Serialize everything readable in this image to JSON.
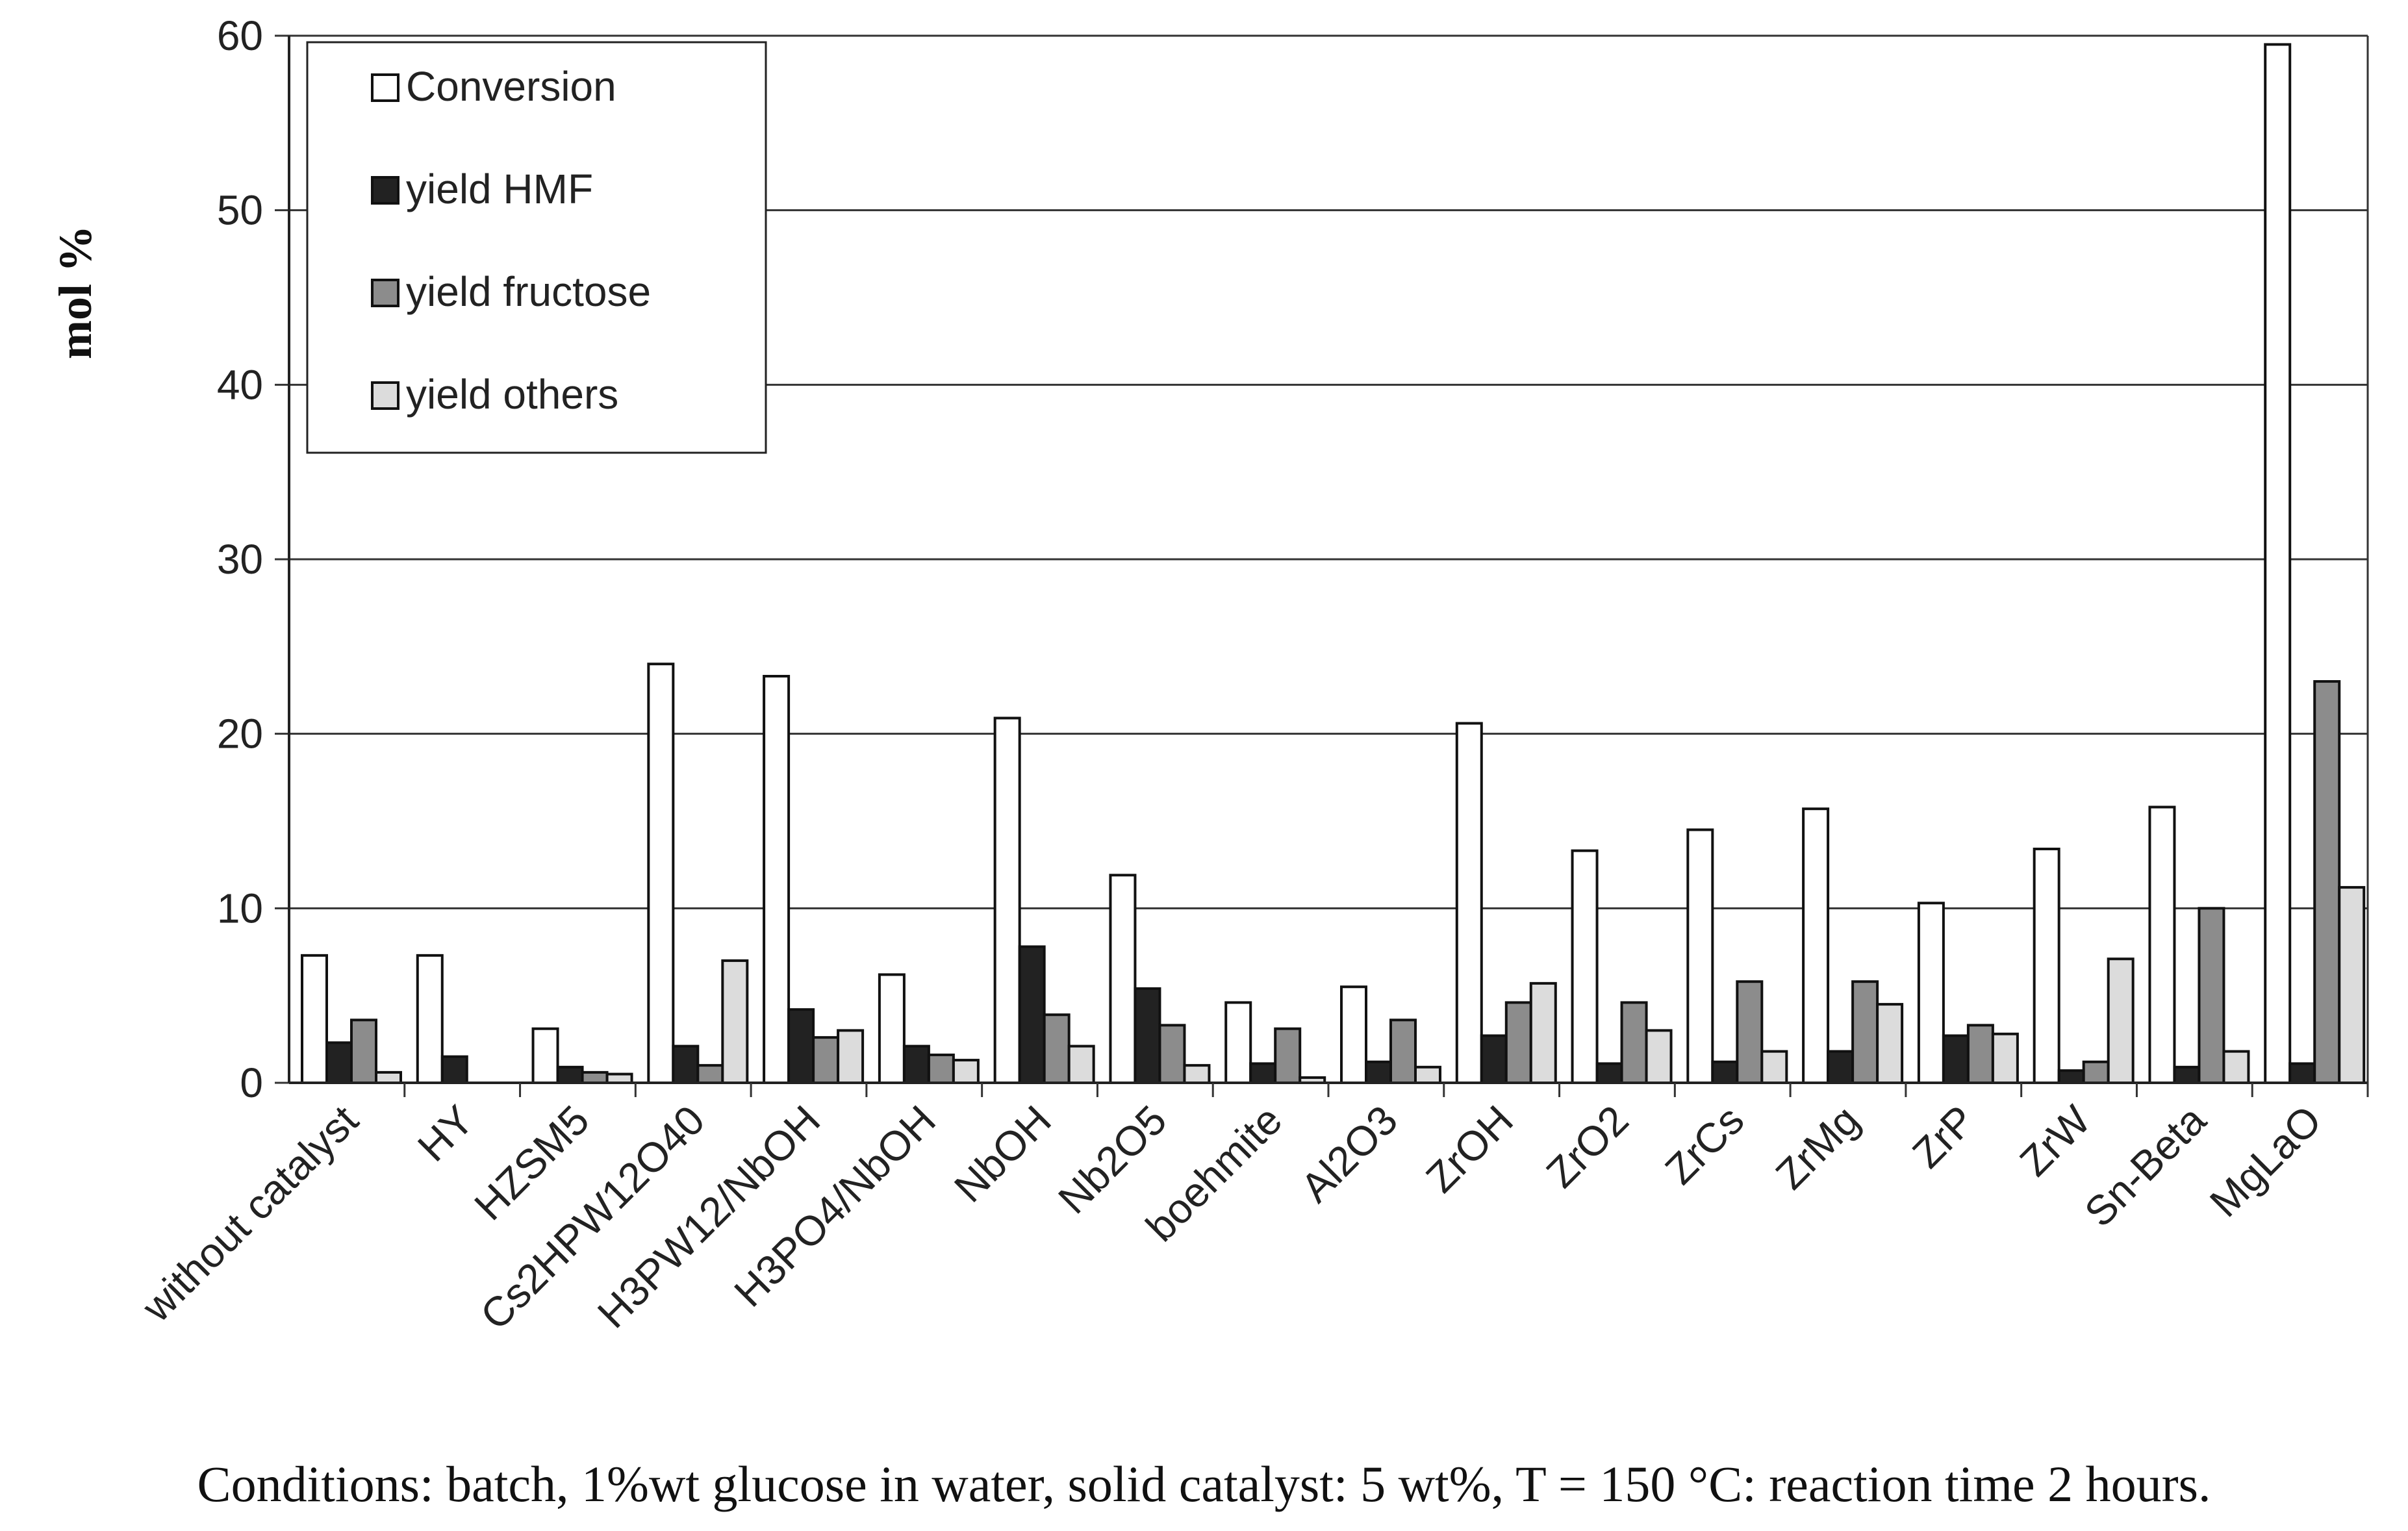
{
  "chart_data": {
    "type": "bar",
    "title": "",
    "xlabel": "",
    "ylabel": "mol %",
    "ylim": [
      0,
      60
    ],
    "yticks": [
      0,
      10,
      20,
      30,
      40,
      50,
      60
    ],
    "grid": true,
    "legend_position": "top-left",
    "categories": [
      "without catalyst",
      "HY",
      "HZSM5",
      "Cs2HPW12O40",
      "H3PW12/NbOH",
      "H3PO4/NbOH",
      "NbOH",
      "Nb2O5",
      "boehmite",
      "Al2O3",
      "ZrOH",
      "ZrO2",
      "ZrCs",
      "ZrMg",
      "ZrP",
      "ZrW",
      "Sn-Beta",
      "MgLaO"
    ],
    "series": [
      {
        "name": "Conversion",
        "color": "#ffffff",
        "values": [
          7.3,
          7.3,
          3.1,
          24.0,
          23.3,
          6.2,
          20.9,
          11.9,
          4.6,
          5.5,
          20.6,
          13.3,
          14.5,
          15.7,
          10.3,
          13.4,
          15.8,
          59.5
        ]
      },
      {
        "name": "yield HMF",
        "color": "#222222",
        "values": [
          2.3,
          1.5,
          0.9,
          2.1,
          4.2,
          2.1,
          7.8,
          5.4,
          1.1,
          1.2,
          2.7,
          1.1,
          1.2,
          1.8,
          2.7,
          0.7,
          0.9,
          1.1
        ]
      },
      {
        "name": "yield fructose",
        "color": "#8c8c8c",
        "values": [
          3.6,
          0.0,
          0.6,
          1.0,
          2.6,
          1.6,
          3.9,
          3.3,
          3.1,
          3.6,
          4.6,
          4.6,
          5.8,
          5.8,
          3.3,
          1.2,
          10.0,
          23.0
        ]
      },
      {
        "name": "yield others",
        "color": "#dcdcdc",
        "values": [
          0.6,
          0.0,
          0.5,
          7.0,
          3.0,
          1.3,
          2.1,
          1.0,
          0.3,
          0.9,
          5.7,
          3.0,
          1.8,
          4.5,
          2.8,
          7.1,
          1.8,
          11.2
        ]
      }
    ]
  },
  "caption": "Conditions: batch, 1%wt glucose in water, solid catalyst: 5 wt%, T = 150 °C: reaction time 2 hours."
}
